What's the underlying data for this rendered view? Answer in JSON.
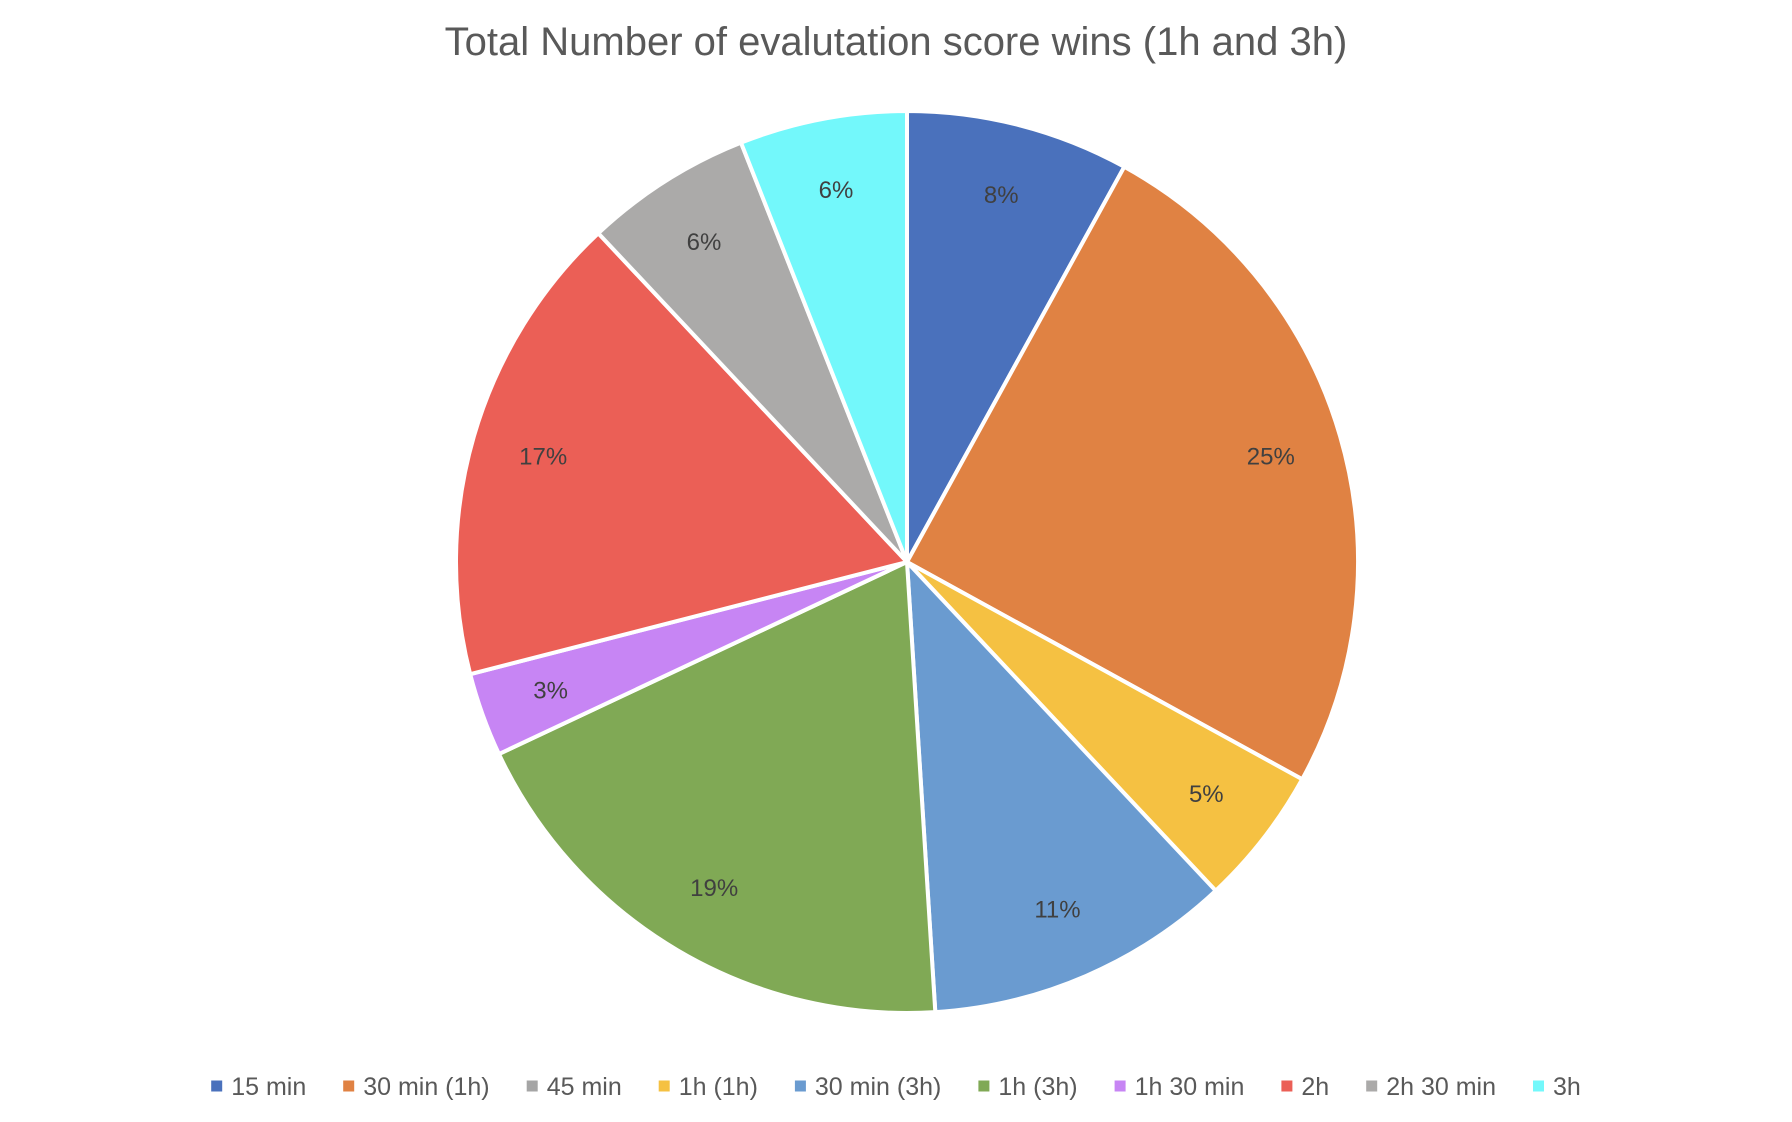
{
  "chart_data": {
    "type": "pie",
    "title": "Total Number of evalutation score wins  (1h and 3h)",
    "legend_position": "bottom",
    "start_angle_deg": 0,
    "direction": "clockwise",
    "slices": [
      {
        "label": "15 min",
        "value": 8,
        "display": "8%",
        "color": "#4A71BC"
      },
      {
        "label": "30 min (1h)",
        "value": 25,
        "display": "25%",
        "color": "#E08243"
      },
      {
        "label": "45 min",
        "value": 0,
        "display": "",
        "color": "#A5A5A5"
      },
      {
        "label": "1h (1h)",
        "value": 5,
        "display": "5%",
        "color": "#F5C142"
      },
      {
        "label": "30 min (3h)",
        "value": 11,
        "display": "11%",
        "color": "#6A9BD0"
      },
      {
        "label": "1h (3h)",
        "value": 19,
        "display": "19%",
        "color": "#80A955"
      },
      {
        "label": "1h 30 min",
        "value": 3,
        "display": "3%",
        "color": "#C785F4"
      },
      {
        "label": "2h",
        "value": 17,
        "display": "17%",
        "color": "#EB5F56"
      },
      {
        "label": "2h 30 min",
        "value": 6,
        "display": "6%",
        "color": "#ABAAA9"
      },
      {
        "label": "3h",
        "value": 6,
        "display": "6%",
        "color": "#73F8FB"
      }
    ]
  }
}
